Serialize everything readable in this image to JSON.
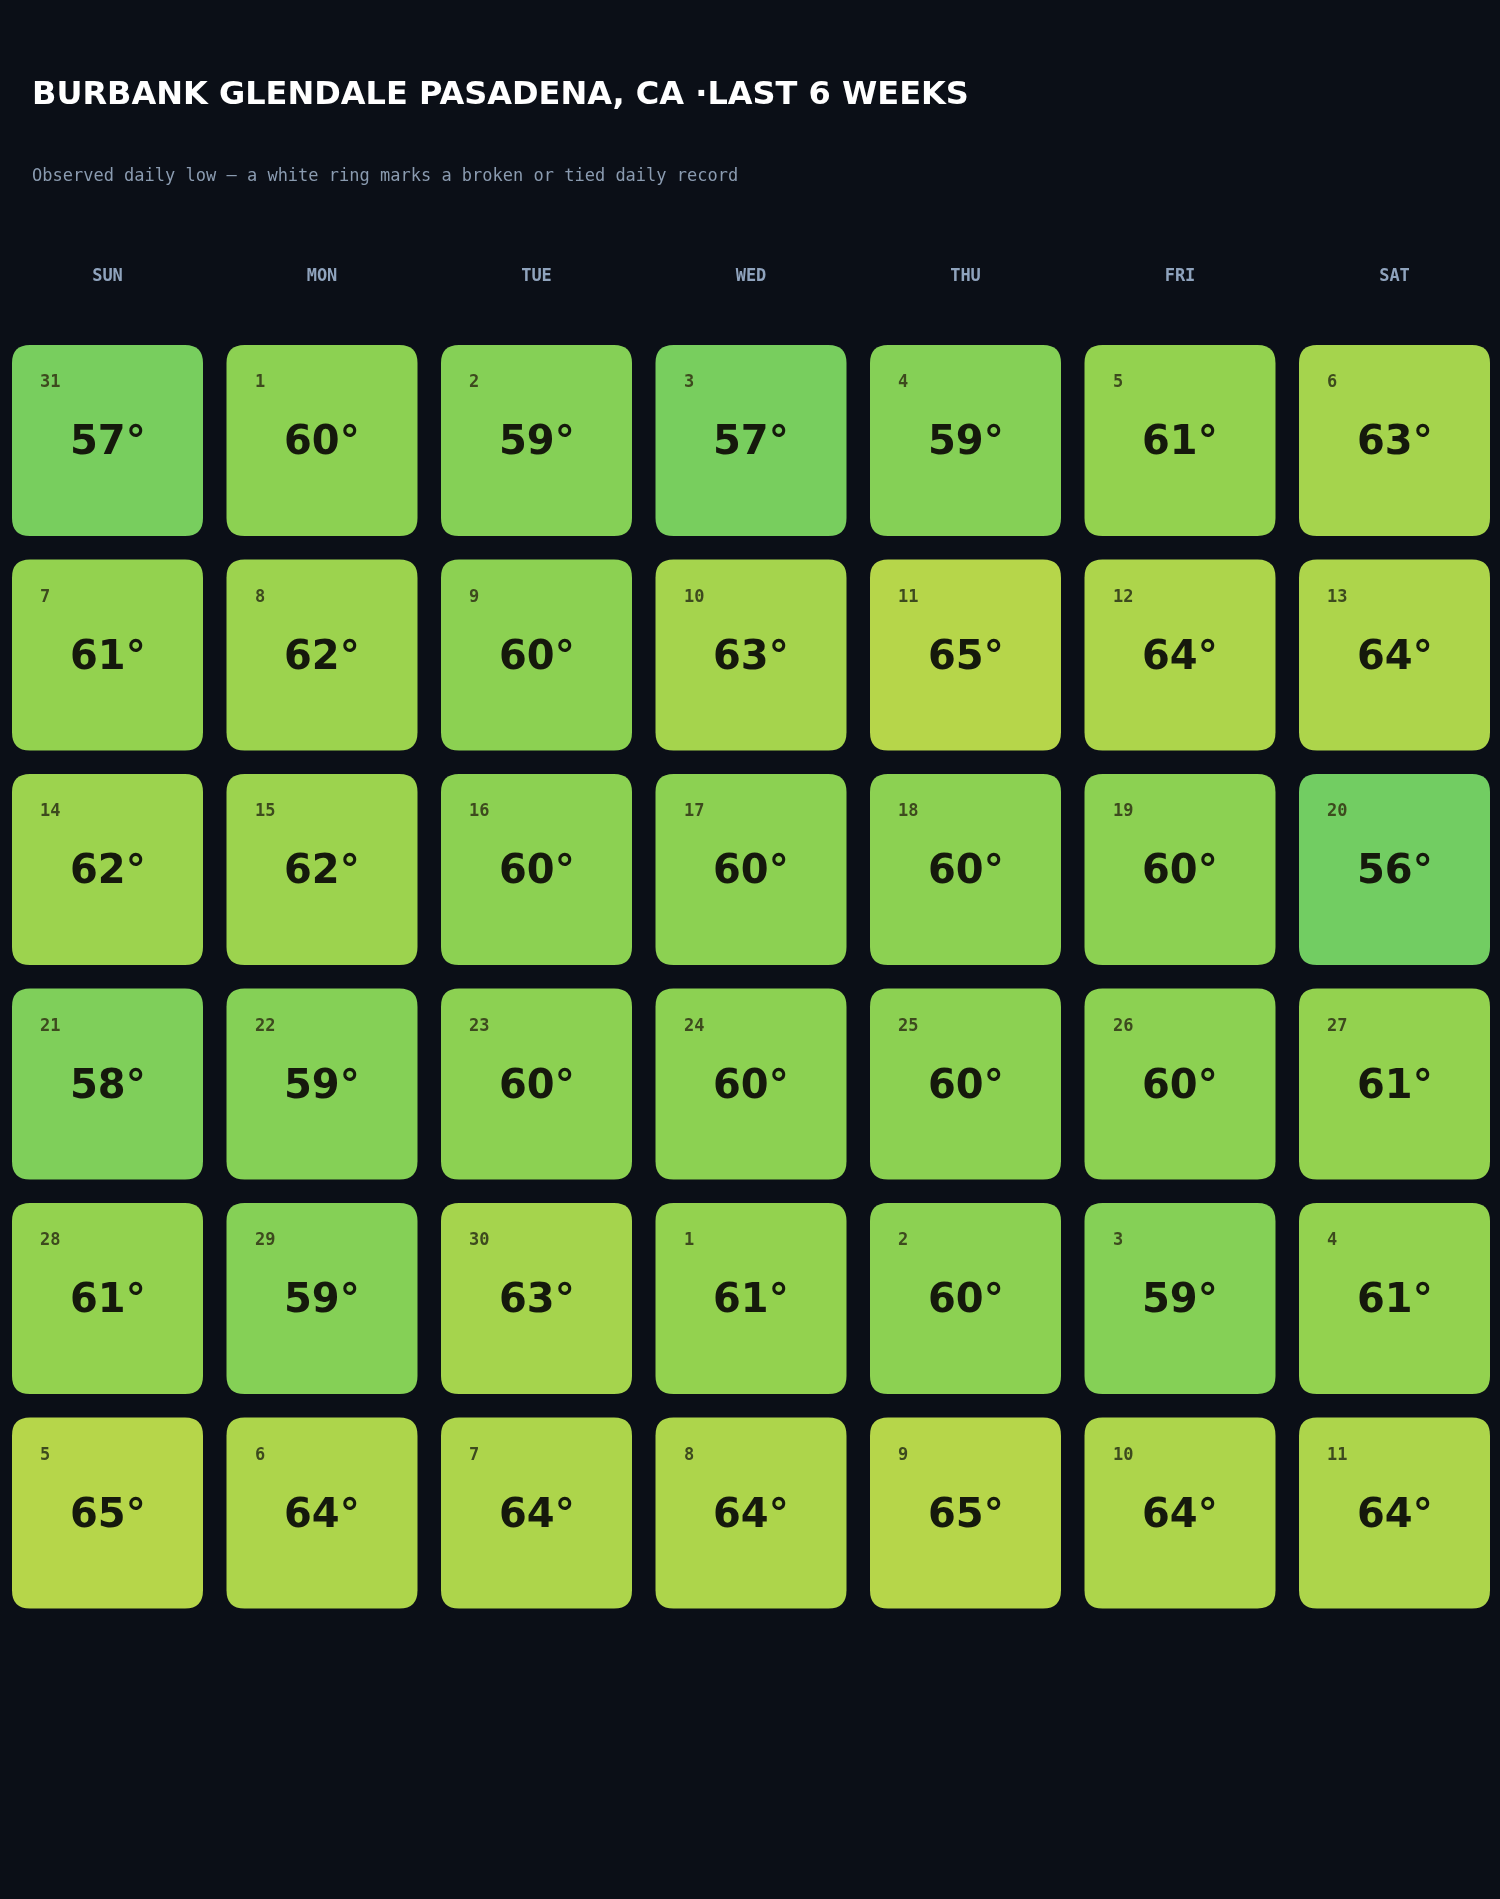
{
  "chart_data": {
    "type": "heatmap",
    "title": "BURBANK GLENDALE PASADENA, CA ·LAST 6 WEEKS",
    "subtitle": "Observed daily low — a white ring marks a broken or tied daily record",
    "categories": [
      "SUN",
      "MON",
      "TUE",
      "WED",
      "THU",
      "FRI",
      "SAT"
    ],
    "y_categories": [
      null,
      null,
      null,
      null,
      null,
      null
    ],
    "cells": [
      [
        57,
        60,
        59,
        57,
        59,
        61,
        63
      ],
      [
        61,
        62,
        60,
        63,
        65,
        64,
        64
      ],
      [
        62,
        62,
        60,
        60,
        60,
        60,
        56
      ],
      [
        58,
        59,
        60,
        60,
        60,
        60,
        61
      ],
      [
        61,
        59,
        63,
        61,
        60,
        59,
        61
      ],
      [
        65,
        64,
        64,
        64,
        65,
        64,
        64
      ]
    ],
    "cell_labels": [
      [
        "57°",
        "60°",
        "59°",
        "57°",
        "59°",
        "61°",
        "63°"
      ],
      [
        "61°",
        "62°",
        "60°",
        "63°",
        "65°",
        "64°",
        "64°"
      ],
      [
        "62°",
        "62°",
        "60°",
        "60°",
        "60°",
        "60°",
        "56°"
      ],
      [
        "58°",
        "59°",
        "60°",
        "60°",
        "60°",
        "60°",
        "61°"
      ],
      [
        "61°",
        "59°",
        "63°",
        "61°",
        "60°",
        "59°",
        "61°"
      ],
      [
        "65°",
        "64°",
        "64°",
        "64°",
        "65°",
        "64°",
        "64°"
      ]
    ],
    "annotations": [
      "31",
      "1",
      "2",
      "3",
      "4",
      "5",
      "6",
      "7",
      "8",
      "9",
      "10",
      "11",
      "12",
      "13",
      "14",
      "15",
      "16",
      "17",
      "18",
      "19",
      "20",
      "21",
      "22",
      "23",
      "24",
      "25",
      "26",
      "27",
      "28",
      "29",
      "30",
      "1",
      "2",
      "3",
      "4",
      "5",
      "6",
      "7",
      "8",
      "9",
      "10",
      "11"
    ]
  }
}
